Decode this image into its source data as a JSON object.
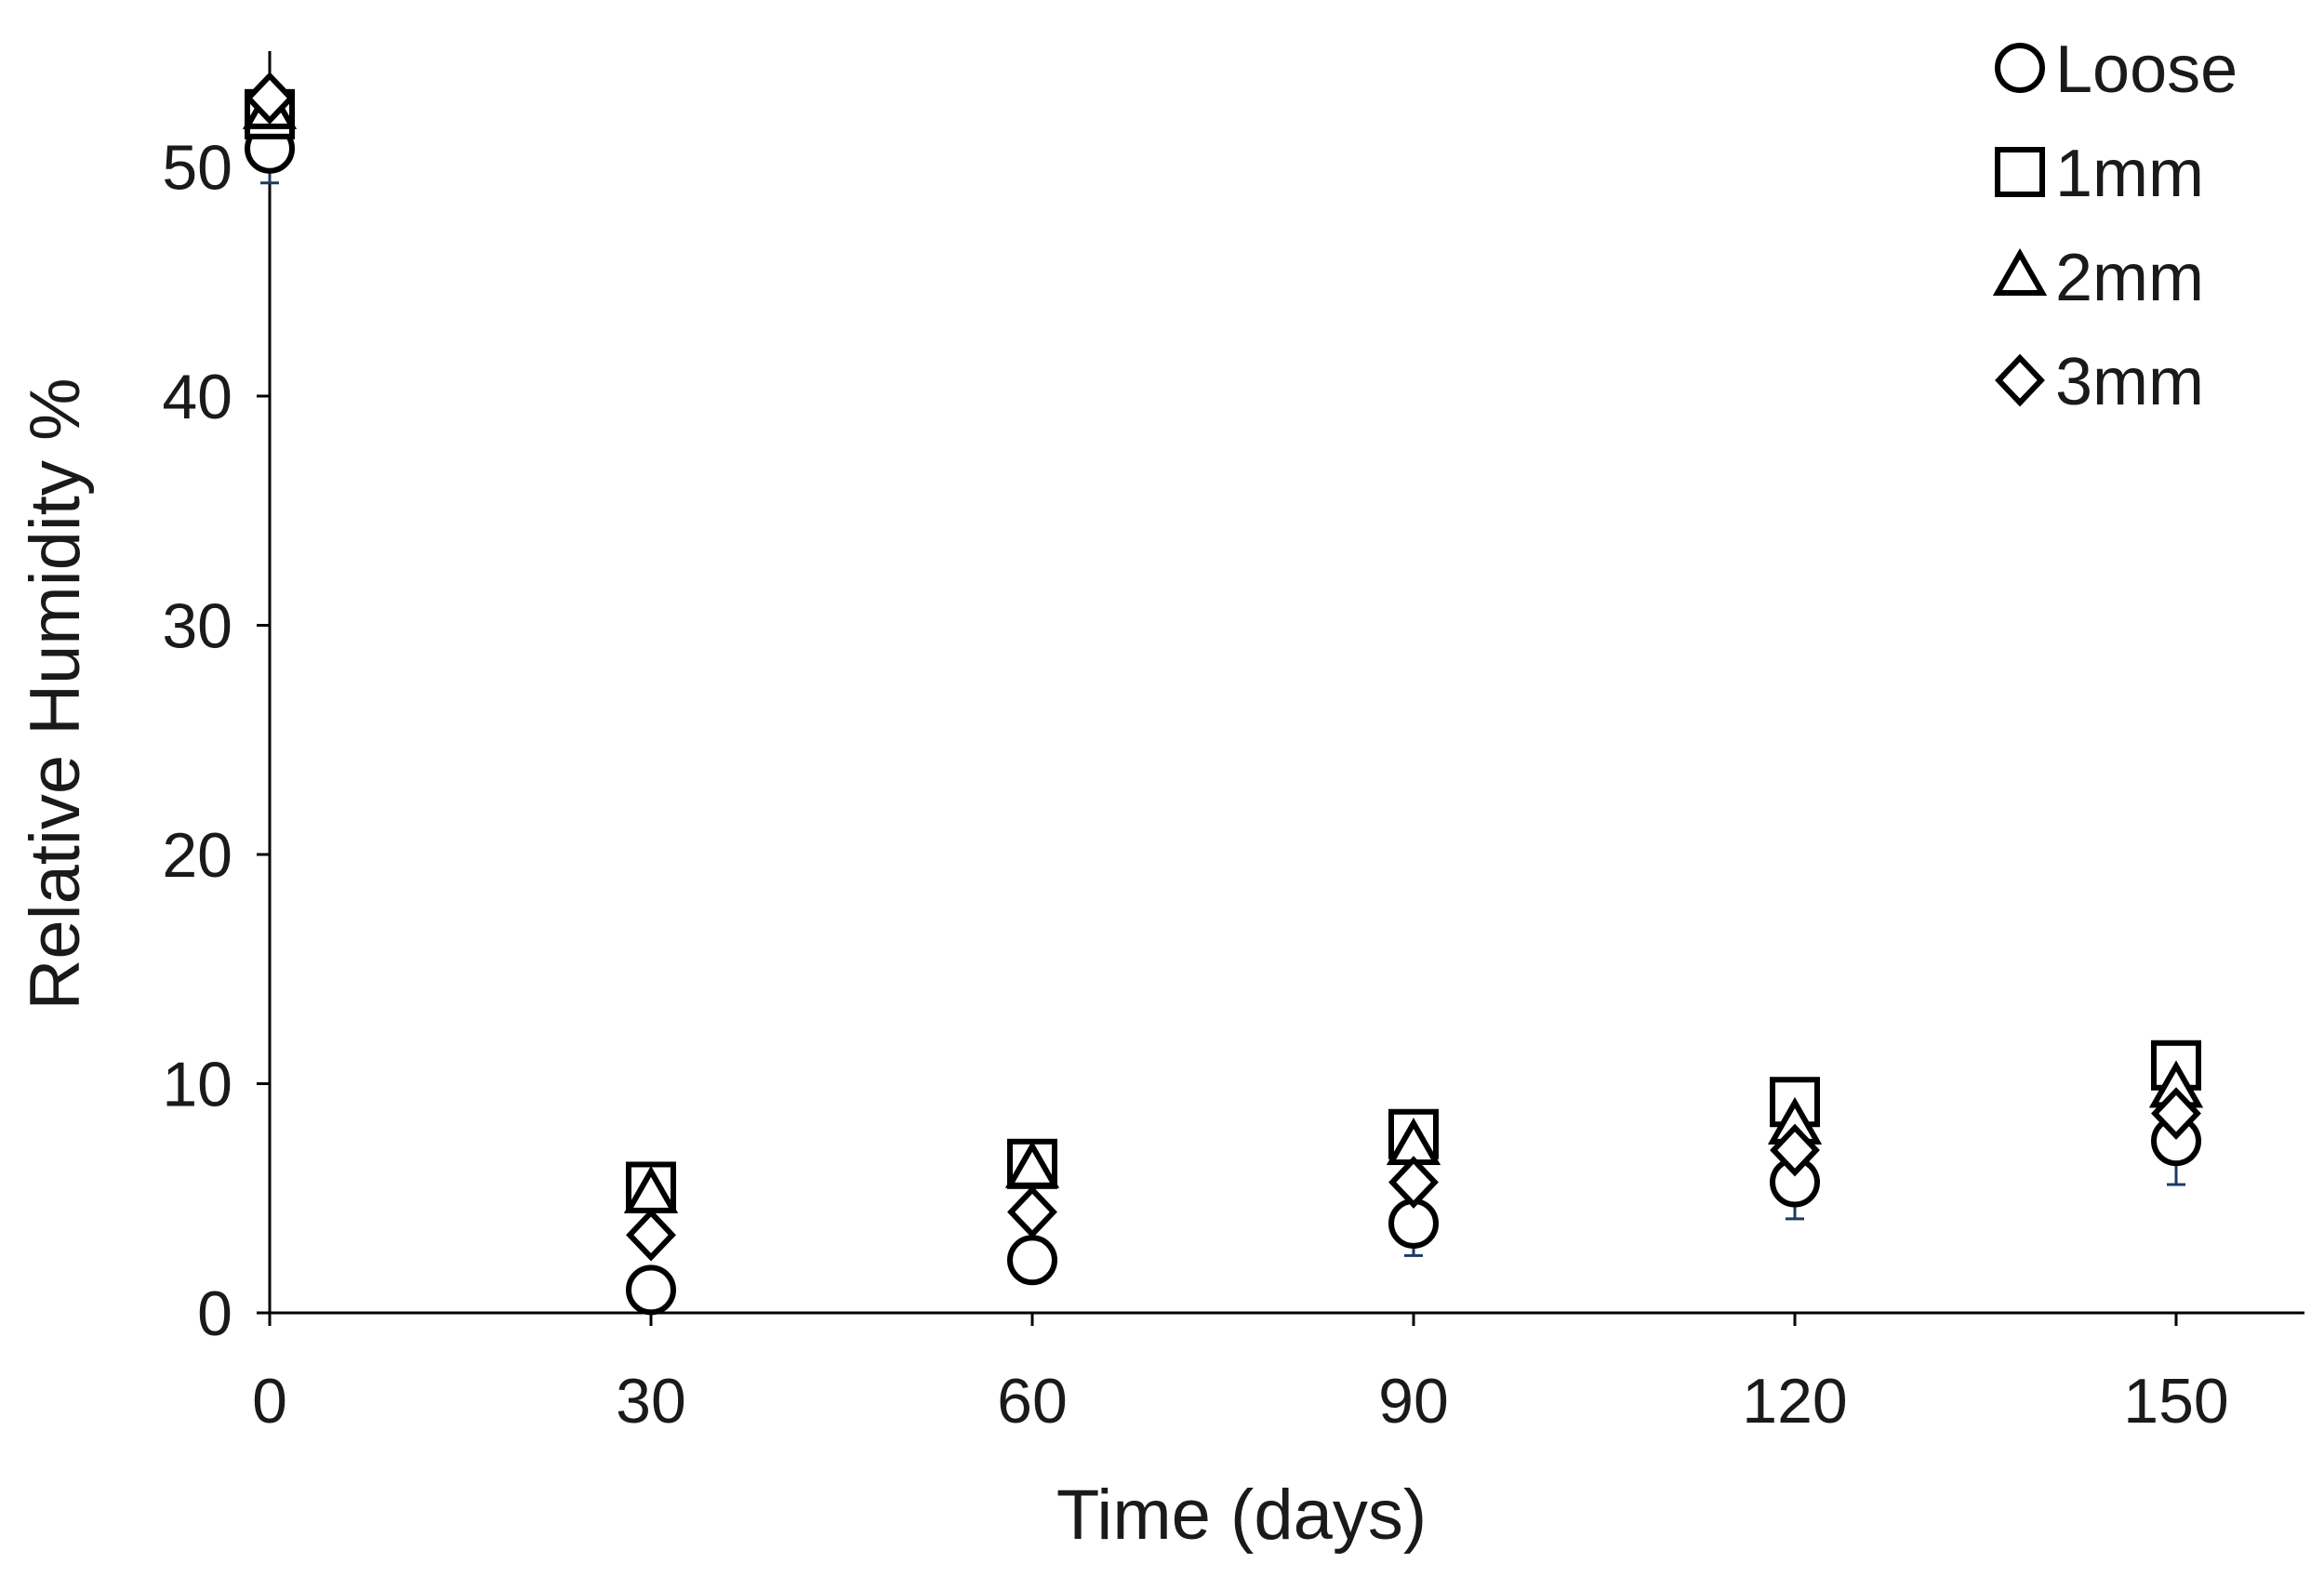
{
  "chart_data": {
    "type": "scatter",
    "xlabel": "Time (days)",
    "ylabel": "Relative Humidity %",
    "x": [
      0,
      30,
      60,
      90,
      120,
      150
    ],
    "xlim": [
      0,
      160
    ],
    "ylim": [
      0,
      55
    ],
    "xticks": [
      0,
      30,
      60,
      90,
      120,
      150
    ],
    "yticks": [
      0,
      10,
      20,
      30,
      40,
      50
    ],
    "grid": false,
    "legend_position": "top-right",
    "series": [
      {
        "name": "Loose",
        "marker": "circle",
        "values": [
          50.8,
          1.0,
          2.3,
          3.9,
          5.7,
          7.5
        ],
        "error": [
          1.5,
          0,
          0,
          1.4,
          1.6,
          1.9
        ]
      },
      {
        "name": "1mm",
        "marker": "square",
        "values": [
          52.3,
          5.5,
          6.5,
          7.8,
          9.2,
          10.8
        ],
        "error": [
          0,
          0,
          0,
          0,
          0,
          0
        ]
      },
      {
        "name": "2mm",
        "marker": "triangle",
        "values": [
          52.5,
          5.2,
          6.3,
          7.3,
          8.2,
          9.8
        ],
        "error": [
          0,
          0,
          0,
          0,
          0,
          0
        ]
      },
      {
        "name": "3mm",
        "marker": "diamond",
        "values": [
          53.0,
          3.4,
          4.4,
          5.7,
          7.1,
          8.7
        ],
        "error": [
          0,
          0,
          0,
          0,
          0,
          0
        ]
      }
    ]
  }
}
